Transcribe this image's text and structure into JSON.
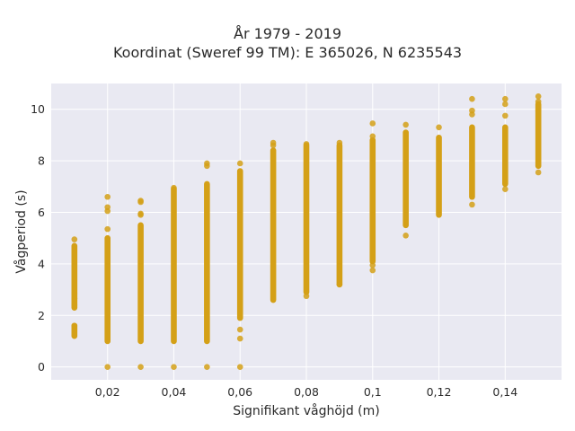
{
  "chart_data": {
    "type": "scatter",
    "title": "År 1979 - 2019",
    "subtitle": "Koordinat (Sweref 99 TM): E 365026, N 6235543",
    "xlabel": "Signifikant våghöjd (m)",
    "ylabel": "Vågperiod (s)",
    "xlim": [
      0.003,
      0.157
    ],
    "ylim": [
      -0.5,
      11.0
    ],
    "x_ticks": [
      0.02,
      0.04,
      0.06,
      0.08,
      0.1,
      0.12,
      0.14
    ],
    "x_tick_labels": [
      "0,02",
      "0,04",
      "0,06",
      "0,08",
      "0,1",
      "0,12",
      "0,14"
    ],
    "y_ticks": [
      0,
      2,
      4,
      6,
      8,
      10
    ],
    "y_tick_labels": [
      "0",
      "2",
      "4",
      "6",
      "8",
      "10"
    ],
    "grid": true,
    "marker_color": "#D4A017",
    "plot_background": "#E9E9F2",
    "series": [
      {
        "bands": [
          {
            "x": 0.01,
            "y_min": 2.3,
            "y_max": 4.7
          },
          {
            "x": 0.01,
            "y_min": 1.2,
            "y_max": 1.6
          },
          {
            "x": 0.02,
            "y_min": 1.0,
            "y_max": 5.0
          },
          {
            "x": 0.03,
            "y_min": 1.0,
            "y_max": 5.5
          },
          {
            "x": 0.04,
            "y_min": 1.0,
            "y_max": 6.9
          },
          {
            "x": 0.05,
            "y_min": 1.0,
            "y_max": 7.1
          },
          {
            "x": 0.06,
            "y_min": 1.9,
            "y_max": 7.6
          },
          {
            "x": 0.07,
            "y_min": 2.6,
            "y_max": 8.4
          },
          {
            "x": 0.08,
            "y_min": 2.9,
            "y_max": 8.6
          },
          {
            "x": 0.09,
            "y_min": 3.2,
            "y_max": 8.6
          },
          {
            "x": 0.1,
            "y_min": 4.1,
            "y_max": 8.8
          },
          {
            "x": 0.11,
            "y_min": 5.5,
            "y_max": 9.1
          },
          {
            "x": 0.12,
            "y_min": 5.9,
            "y_max": 8.9
          },
          {
            "x": 0.13,
            "y_min": 6.6,
            "y_max": 9.3
          },
          {
            "x": 0.14,
            "y_min": 7.1,
            "y_max": 9.3
          },
          {
            "x": 0.15,
            "y_min": 7.8,
            "y_max": 10.2
          }
        ],
        "points": [
          {
            "x": 0.01,
            "y": 4.95
          },
          {
            "x": 0.01,
            "y": 2.85
          },
          {
            "x": 0.01,
            "y": 2.65
          },
          {
            "x": 0.01,
            "y": 2.4
          },
          {
            "x": 0.01,
            "y": 1.6
          },
          {
            "x": 0.02,
            "y": 6.6
          },
          {
            "x": 0.02,
            "y": 6.2
          },
          {
            "x": 0.02,
            "y": 6.05
          },
          {
            "x": 0.02,
            "y": 5.35
          },
          {
            "x": 0.02,
            "y": 0.0
          },
          {
            "x": 0.03,
            "y": 6.45
          },
          {
            "x": 0.03,
            "y": 6.4
          },
          {
            "x": 0.03,
            "y": 5.95
          },
          {
            "x": 0.03,
            "y": 5.9
          },
          {
            "x": 0.03,
            "y": 0.0
          },
          {
            "x": 0.04,
            "y": 6.95
          },
          {
            "x": 0.04,
            "y": 0.0
          },
          {
            "x": 0.05,
            "y": 7.9
          },
          {
            "x": 0.05,
            "y": 7.8
          },
          {
            "x": 0.05,
            "y": 0.0
          },
          {
            "x": 0.06,
            "y": 7.9
          },
          {
            "x": 0.06,
            "y": 1.45
          },
          {
            "x": 0.06,
            "y": 1.1
          },
          {
            "x": 0.06,
            "y": 0.0
          },
          {
            "x": 0.07,
            "y": 8.7
          },
          {
            "x": 0.07,
            "y": 8.6
          },
          {
            "x": 0.08,
            "y": 8.65
          },
          {
            "x": 0.08,
            "y": 2.75
          },
          {
            "x": 0.09,
            "y": 8.7
          },
          {
            "x": 0.09,
            "y": 3.2
          },
          {
            "x": 0.1,
            "y": 9.45
          },
          {
            "x": 0.1,
            "y": 8.95
          },
          {
            "x": 0.1,
            "y": 3.95
          },
          {
            "x": 0.1,
            "y": 3.75
          },
          {
            "x": 0.11,
            "y": 9.4
          },
          {
            "x": 0.11,
            "y": 5.1
          },
          {
            "x": 0.12,
            "y": 9.3
          },
          {
            "x": 0.13,
            "y": 10.4
          },
          {
            "x": 0.13,
            "y": 9.95
          },
          {
            "x": 0.13,
            "y": 9.8
          },
          {
            "x": 0.13,
            "y": 6.3
          },
          {
            "x": 0.14,
            "y": 10.4
          },
          {
            "x": 0.14,
            "y": 10.2
          },
          {
            "x": 0.14,
            "y": 9.75
          },
          {
            "x": 0.14,
            "y": 6.9
          },
          {
            "x": 0.15,
            "y": 10.5
          },
          {
            "x": 0.15,
            "y": 10.3
          },
          {
            "x": 0.15,
            "y": 9.95
          },
          {
            "x": 0.15,
            "y": 7.55
          }
        ]
      }
    ]
  }
}
